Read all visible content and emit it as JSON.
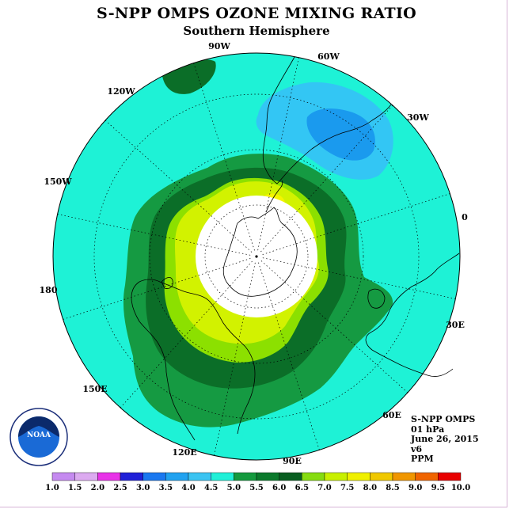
{
  "title": "S-NPP OMPS OZONE MIXING RATIO",
  "subtitle": "Southern Hemisphere",
  "longitude_labels": [
    "90W",
    "60W",
    "30W",
    "0",
    "30E",
    "60E",
    "90E",
    "120E",
    "150E",
    "180",
    "150W",
    "120W"
  ],
  "info": {
    "instrument": "S-NPP OMPS",
    "level": "01 hPa",
    "date": "June 26, 2015",
    "version": "v6",
    "units": "PPM"
  },
  "logo": {
    "text": "NOAA",
    "ring_text": "NATIONAL OCEANIC AND ATMOSPHERIC ADMINISTRATION U.S. DEPARTMENT OF COMMERCE"
  },
  "colorbar": {
    "ticks": [
      "1.0",
      "1.5",
      "2.0",
      "2.5",
      "3.0",
      "3.5",
      "4.0",
      "4.5",
      "5.0",
      "5.5",
      "6.0",
      "6.5",
      "7.0",
      "7.5",
      "8.0",
      "8.5",
      "9.0",
      "9.5",
      "10.0"
    ],
    "colors": [
      "#c58af0",
      "#dcaaf0",
      "#e832e8",
      "#2020d8",
      "#1a78f0",
      "#21a2f0",
      "#3bc4f2",
      "#20f0d8",
      "#149a3e",
      "#0b7a2c",
      "#085e20",
      "#86dc10",
      "#c8f000",
      "#f0f000",
      "#f0c800",
      "#f09600",
      "#f06400",
      "#e80000",
      "#8a5a3a"
    ]
  },
  "map": {
    "colors": {
      "background": "#1ef2d6",
      "light_blue": "#33c6f4",
      "mid_blue": "#1a9aee",
      "green_5_5": "#159a42",
      "green_6_0": "#0b6e28",
      "yellow_green": "#8ce000",
      "lime": "#d2f200",
      "yellow": "#f4f400",
      "polar_night": "#ffffff"
    }
  }
}
